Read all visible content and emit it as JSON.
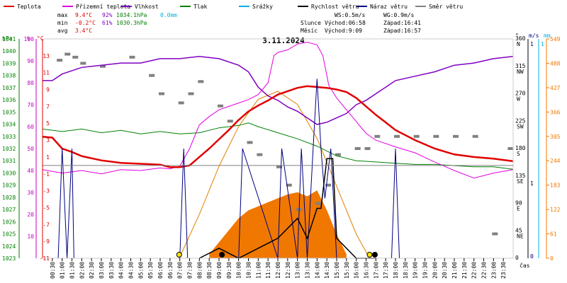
{
  "header": {
    "legend": [
      {
        "label": "Teplota",
        "color": "#e00000"
      },
      {
        "label": "Přízemní teplota",
        "color": "#e000e0"
      },
      {
        "label": "Vlhkost",
        "color": "#8000c0"
      },
      {
        "label": "Tlak",
        "color": "#008000"
      },
      {
        "label": "Srážky",
        "color": "#00b0e0"
      },
      {
        "label": "Rychlost větru",
        "color": "#000000"
      },
      {
        "label": "Náraz větru",
        "color": "#000080"
      },
      {
        "label": "Směr větru",
        "color": "#808080"
      }
    ],
    "stats": {
      "max": {
        "label": "max",
        "temp": "9.4°C",
        "hum": "92%",
        "press": "1034.1hPa",
        "rain": "0.0mm"
      },
      "min": {
        "label": "min",
        "temp": "-0.2°C",
        "hum": "61%",
        "press": "1030.3hPa"
      },
      "avg": {
        "label": "avg",
        "temp": "3.4°C"
      }
    },
    "wind": {
      "ws": "WS:0.5m/s",
      "wg": "WG:0.9m/s"
    },
    "sun": {
      "label": "Slunce",
      "rise": "Východ:06:58",
      "set": "Západ:16:41"
    },
    "moon": {
      "label": "Měsíc",
      "rise": "Východ:9:09",
      "set": "Západ:16:57"
    }
  },
  "chart_data": {
    "type": "line",
    "title": "3.11.2024",
    "xlabel": "čas",
    "x_ticks": [
      "00:30",
      "01:00",
      "01:30",
      "02:00",
      "02:30",
      "03:00",
      "03:30",
      "04:00",
      "04:30",
      "05:00",
      "05:30",
      "06:00",
      "06:30",
      "07:00",
      "07:30",
      "08:00",
      "08:30",
      "09:00",
      "09:30",
      "10:00",
      "10:30",
      "11:00",
      "11:30",
      "12:00",
      "12:30",
      "13:00",
      "13:30",
      "14:00",
      "14:30",
      "15:00",
      "15:30",
      "16:00",
      "16:30",
      "17:00",
      "17:30",
      "18:00",
      "18:30",
      "19:00",
      "19:30",
      "20:00",
      "20:30",
      "21:00",
      "21:30",
      "22:00",
      "22:30",
      "23:00",
      "23:30"
    ],
    "axes": {
      "pressure": {
        "unit": "hPa",
        "ticks": [
          "1041",
          "1040",
          "1039",
          "1038",
          "1037",
          "1036",
          "1035",
          "1034",
          "1033",
          "1032",
          "1031",
          "1030",
          "1029",
          "1028",
          "1027",
          "1026",
          "1025",
          "1024",
          "1023"
        ],
        "range": [
          1023,
          1041
        ]
      },
      "humidity": {
        "unit": "%",
        "ticks": [
          "100",
          "90",
          "80",
          "70",
          "60",
          "50",
          "40",
          "30",
          "20",
          "10"
        ],
        "range": [
          0,
          100
        ]
      },
      "temperature": {
        "unit": "°C",
        "ticks": [
          "13",
          "11",
          "9",
          "7",
          "5",
          "3",
          "1",
          "-1",
          "-3",
          "-5",
          "-7",
          "-9",
          "-11"
        ],
        "range": [
          -11,
          15
        ]
      },
      "direction": {
        "unit": "°",
        "ticks": [
          "360",
          "315",
          "270",
          "225",
          "180",
          "135",
          "90",
          "45",
          "0"
        ],
        "labels": [
          "N",
          "NW",
          "W",
          "SW",
          "S",
          "SE",
          "E",
          "NE",
          ""
        ],
        "range": [
          0,
          360
        ]
      },
      "wind_speed": {
        "unit": "m/s",
        "ticks": [
          "1",
          "0"
        ],
        "range": [
          0,
          1
        ]
      },
      "rain": {
        "unit": "mm",
        "ticks": [
          "1"
        ]
      },
      "solar": {
        "unit": "",
        "ticks": [
          "549",
          "488",
          "427",
          "366",
          "305",
          "244",
          "183",
          "122",
          "61",
          "0"
        ],
        "range": [
          0,
          549
        ]
      }
    },
    "series": [
      {
        "name": "Teplota",
        "color": "#e00000",
        "unit": "°C",
        "axis": "temperature",
        "x": [
          0,
          0.5,
          1,
          1.5,
          2,
          3,
          4,
          5,
          6,
          6.5,
          7,
          7.5,
          8,
          8.5,
          9,
          9.5,
          10,
          10.5,
          11,
          11.5,
          12,
          12.5,
          13,
          13.5,
          14,
          14.5,
          15,
          15.5,
          16,
          16.5,
          17,
          17.5,
          18,
          19,
          20,
          21,
          22,
          23,
          24
        ],
        "y": [
          3.4,
          3.3,
          2.0,
          1.6,
          1.1,
          0.6,
          0.3,
          0.2,
          0.1,
          -0.2,
          -0.2,
          0.0,
          1.0,
          2.0,
          3.1,
          4.2,
          5.4,
          6.4,
          7.1,
          7.7,
          8.4,
          8.8,
          9.2,
          9.4,
          9.3,
          9.2,
          9.0,
          8.7,
          8.0,
          7.0,
          6.0,
          5.1,
          4.2,
          3.0,
          2.0,
          1.3,
          1.0,
          0.8,
          0.5
        ]
      },
      {
        "name": "Přízemní teplota",
        "color": "#e000e0",
        "unit": "°C",
        "axis": "temperature",
        "x": [
          0,
          0.5,
          1,
          2,
          3,
          4,
          5,
          6,
          6.5,
          7,
          7.5,
          8,
          8.5,
          9,
          9.5,
          10,
          10.5,
          11,
          11.5,
          11.8,
          12,
          12.5,
          13,
          13.5,
          14,
          14.3,
          14.6,
          15,
          15.5,
          16,
          16.5,
          17,
          18,
          19,
          20,
          21,
          22,
          23,
          24
        ],
        "y": [
          -0.5,
          -0.7,
          -0.9,
          -0.6,
          -1.0,
          -0.5,
          -0.6,
          -0.3,
          -0.4,
          -0.1,
          2.0,
          4.8,
          5.8,
          6.6,
          7.0,
          7.4,
          7.8,
          8.4,
          9.8,
          13.0,
          13.4,
          13.7,
          14.4,
          14.6,
          14.3,
          13.0,
          9.5,
          8.0,
          6.6,
          5.2,
          3.8,
          3.0,
          2.2,
          1.5,
          0.4,
          -0.6,
          -1.5,
          -0.9,
          -0.5
        ]
      },
      {
        "name": "Vlhkost",
        "color": "#8000c0",
        "unit": "%",
        "axis": "humidity",
        "x": [
          0,
          0.5,
          1,
          2,
          3,
          4,
          5,
          6,
          7,
          8,
          9,
          10,
          10.5,
          11,
          11.5,
          12,
          12.5,
          13,
          13.5,
          14,
          14.5,
          15,
          15.5,
          16,
          16.5,
          17,
          17.5,
          18,
          19,
          20,
          21,
          22,
          23,
          24
        ],
        "y": [
          81,
          81,
          84,
          87,
          88,
          89,
          89,
          91,
          91,
          92,
          91,
          88,
          85,
          78,
          74,
          72,
          69,
          67,
          64,
          61,
          62,
          64,
          66,
          70,
          72,
          75,
          78,
          81,
          83,
          85,
          88,
          89,
          91,
          92
        ]
      },
      {
        "name": "Tlak",
        "color": "#008000",
        "unit": "hPa",
        "axis": "pressure",
        "x": [
          0,
          1,
          2,
          3,
          4,
          5,
          6,
          7,
          8,
          9,
          10,
          10.5,
          11,
          12,
          13,
          14,
          15,
          16,
          17,
          18,
          19,
          20,
          21,
          22,
          23,
          24
        ],
        "y": [
          1033.6,
          1033.4,
          1033.6,
          1033.3,
          1033.5,
          1033.2,
          1033.4,
          1033.2,
          1033.3,
          1033.7,
          1033.9,
          1034.1,
          1033.8,
          1033.3,
          1032.8,
          1032.2,
          1031.4,
          1031.0,
          1030.9,
          1030.8,
          1030.7,
          1030.7,
          1030.6,
          1030.5,
          1030.5,
          1030.3
        ]
      },
      {
        "name": "Srážky",
        "color": "#00b0e0",
        "unit": "mm",
        "axis": "rain",
        "x": [
          0,
          24
        ],
        "y": [
          0.0,
          0.0
        ]
      },
      {
        "name": "Rychlost větru",
        "color": "#000000",
        "unit": "m/s",
        "axis": "wind_speed",
        "x": [
          8,
          9,
          10,
          11,
          12,
          12.5,
          13,
          13.5,
          14,
          14.2,
          14.5,
          14.8,
          15,
          16,
          17
        ],
        "y": [
          0,
          0.05,
          0,
          0.05,
          0.1,
          0.15,
          0.2,
          0.1,
          0.25,
          0.25,
          0.5,
          0.5,
          0.1,
          0,
          0
        ]
      },
      {
        "name": "Náraz větru",
        "color": "#000080",
        "unit": "m/s",
        "axis": "wind_speed",
        "x": [
          0.8,
          1.0,
          1.25,
          1.5,
          1.6,
          7.0,
          7.2,
          7.4,
          10.0,
          10.2,
          12.0,
          12.2,
          13.0,
          13.2,
          13.5,
          13.8,
          14.0,
          14.2,
          14.4,
          14.7,
          15.0,
          17.8,
          18.0,
          18.2
        ],
        "y": [
          0,
          0.55,
          0,
          0.55,
          0,
          0,
          0.55,
          0,
          0,
          0.55,
          0,
          0.55,
          0,
          0.55,
          0,
          0.55,
          0.9,
          0.55,
          0.3,
          0.55,
          0,
          0,
          0.55,
          0
        ]
      },
      {
        "name": "Směr větru",
        "color": "#808080",
        "unit": "°",
        "axis": "direction",
        "x": [
          0.8,
          1.2,
          1.6,
          2.0,
          3.0,
          4.5,
          5.5,
          6.0,
          7.0,
          7.5,
          8.0,
          9.0,
          9.5,
          10.5,
          11.0,
          12.0,
          12.5,
          13.0,
          14.0,
          14.5,
          15.0,
          16.0,
          16.5,
          17.0,
          18.0,
          19.0,
          20.0,
          21.0,
          22.0,
          23.0,
          23.8
        ],
        "y": [
          325,
          335,
          330,
          320,
          315,
          330,
          300,
          270,
          255,
          270,
          290,
          250,
          225,
          190,
          170,
          150,
          120,
          80,
          90,
          120,
          170,
          180,
          180,
          200,
          200,
          200,
          200,
          200,
          200,
          40,
          180
        ]
      },
      {
        "name": "Sluneční svit",
        "color": "#f07800",
        "unit": "",
        "axis": "solar",
        "x": [
          8.5,
          9,
          9.5,
          10,
          10.5,
          11,
          11.5,
          12,
          12.5,
          13,
          13.5,
          14,
          14.5,
          15,
          15.5
        ],
        "y": [
          10,
          40,
          70,
          100,
          120,
          130,
          140,
          150,
          160,
          165,
          155,
          170,
          120,
          60,
          10
        ]
      },
      {
        "name": "Teoretické maximum",
        "color": "#e08000",
        "unit": "",
        "axis": "solar",
        "x": [
          6.97,
          8,
          9,
          10,
          11,
          12,
          13,
          14,
          15,
          16,
          16.68
        ],
        "y": [
          0,
          110,
          230,
          330,
          398,
          418,
          385,
          300,
          180,
          60,
          0
        ]
      }
    ],
    "sun_markers": [
      {
        "x": 6.97,
        "kind": "sunrise"
      },
      {
        "x": 16.68,
        "kind": "sunset"
      }
    ],
    "moon_markers": [
      {
        "x": 9.15,
        "kind": "moonrise"
      },
      {
        "x": 16.95,
        "kind": "moonset"
      }
    ],
    "grid": false,
    "legend_position": "top"
  }
}
